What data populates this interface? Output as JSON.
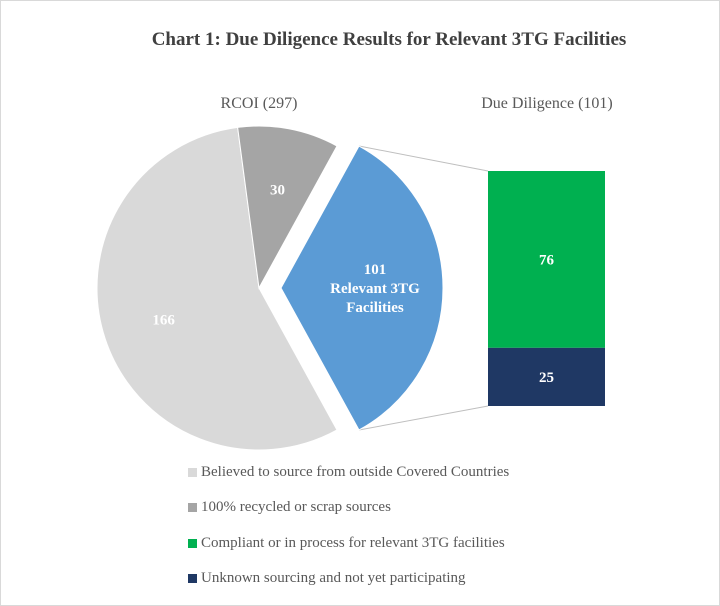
{
  "chart_data": {
    "type": "bar-of-pie",
    "title": "Chart 1: Due Diligence Results for Relevant 3TG Facilities",
    "pie": {
      "label": "RCOI (297)",
      "slices": [
        {
          "label": "166",
          "value": 166,
          "color": "#d9d9d9"
        },
        {
          "label": "30",
          "value": 30,
          "color": "#a5a5a5"
        },
        {
          "label": "101|Relevant 3TG|Facilities",
          "value": 101,
          "color": "#5b9bd5",
          "exploded": true
        }
      ]
    },
    "bar": {
      "label": "Due Diligence (101)",
      "segments": [
        {
          "label": "76",
          "value": 76,
          "color": "#00b050"
        },
        {
          "label": "25",
          "value": 25,
          "color": "#1f3864"
        }
      ]
    },
    "legend": [
      {
        "label": "Believed to source from outside Covered Countries",
        "color": "#d9d9d9"
      },
      {
        "label": "100% recycled or scrap sources",
        "color": "#a5a5a5"
      },
      {
        "label": "Compliant or in process for relevant 3TG facilities",
        "color": "#00b050"
      },
      {
        "label": "Unknown sourcing and not yet participating",
        "color": "#1f3864"
      }
    ]
  }
}
